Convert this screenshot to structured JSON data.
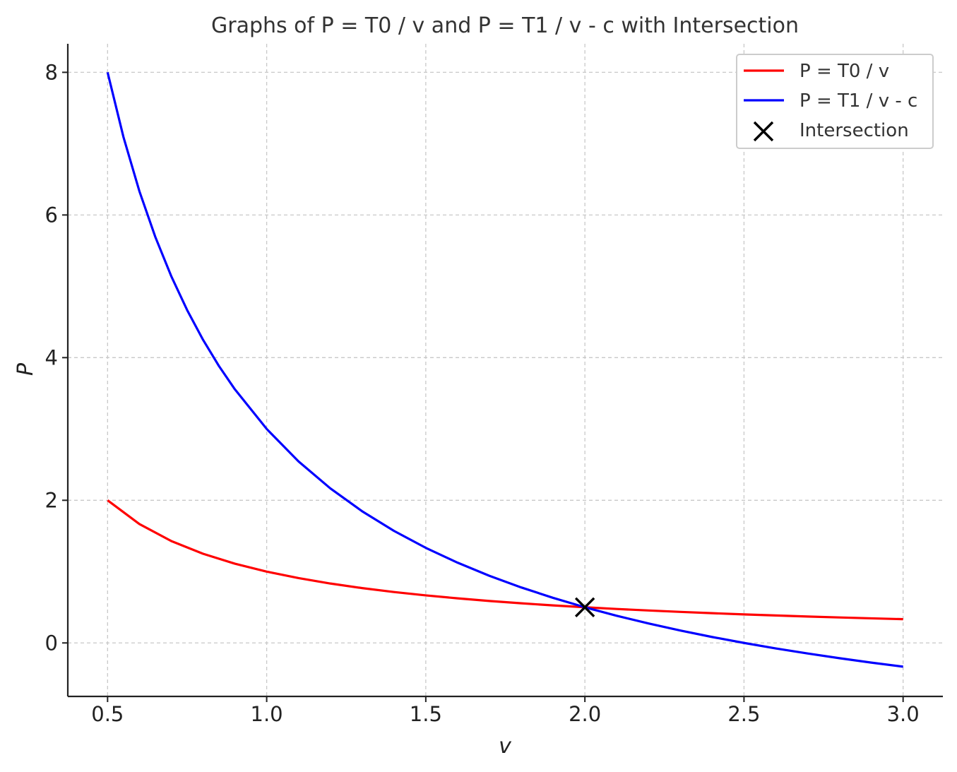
{
  "chart_data": {
    "type": "line",
    "title": "Graphs of P = T0 / v and P = T1 / v - c with Intersection",
    "xlabel": "v",
    "ylabel": "P",
    "xlim": [
      0.375,
      3.125
    ],
    "ylim": [
      -0.75,
      8.4
    ],
    "xticks": [
      0.5,
      1.0,
      1.5,
      2.0,
      2.5,
      3.0
    ],
    "xtick_labels": [
      "0.5",
      "1.0",
      "1.5",
      "2.0",
      "2.5",
      "3.0"
    ],
    "yticks": [
      0,
      2,
      4,
      6,
      8
    ],
    "ytick_labels": [
      "0",
      "2",
      "4",
      "6",
      "8"
    ],
    "grid": true,
    "legend_position": "top-right",
    "series": [
      {
        "name": "P = T0 / v",
        "color": "#ff0000",
        "x": [
          0.5,
          0.6,
          0.7,
          0.8,
          0.9,
          1.0,
          1.1,
          1.2,
          1.3,
          1.4,
          1.5,
          1.6,
          1.7,
          1.8,
          1.9,
          2.0,
          2.1,
          2.2,
          2.3,
          2.4,
          2.5,
          2.6,
          2.7,
          2.8,
          2.9,
          3.0
        ],
        "y": [
          2.0,
          1.667,
          1.429,
          1.25,
          1.111,
          1.0,
          0.909,
          0.833,
          0.769,
          0.714,
          0.667,
          0.625,
          0.588,
          0.556,
          0.526,
          0.5,
          0.476,
          0.455,
          0.435,
          0.417,
          0.4,
          0.385,
          0.37,
          0.357,
          0.345,
          0.333
        ]
      },
      {
        "name": "P = T1 / v - c",
        "color": "#0000ff",
        "x": [
          0.5,
          0.55,
          0.6,
          0.65,
          0.7,
          0.75,
          0.8,
          0.85,
          0.9,
          1.0,
          1.1,
          1.2,
          1.3,
          1.4,
          1.5,
          1.6,
          1.7,
          1.8,
          1.9,
          2.0,
          2.1,
          2.2,
          2.3,
          2.4,
          2.5,
          2.6,
          2.7,
          2.8,
          2.9,
          3.0
        ],
        "y": [
          8.0,
          7.091,
          6.333,
          5.692,
          5.143,
          4.667,
          4.25,
          3.882,
          3.556,
          3.0,
          2.545,
          2.167,
          1.846,
          1.571,
          1.333,
          1.125,
          0.941,
          0.778,
          0.632,
          0.5,
          0.381,
          0.273,
          0.174,
          0.083,
          0.0,
          -0.077,
          -0.148,
          -0.214,
          -0.276,
          -0.333
        ]
      }
    ],
    "markers": [
      {
        "name": "Intersection",
        "x": 2.0,
        "y": 0.5,
        "symbol": "x",
        "color": "#000000"
      }
    ]
  }
}
